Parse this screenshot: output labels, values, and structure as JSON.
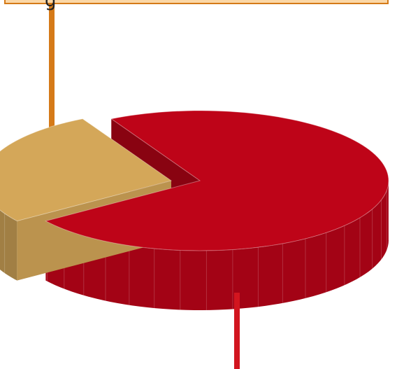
{
  "chart_data": {
    "type": "pie",
    "style": "3d-exploded",
    "slices": [
      {
        "label": "",
        "value": 73,
        "color": "#be0418",
        "exploded": false
      },
      {
        "label": "",
        "value": 27,
        "color": "#d4a759",
        "exploded": true
      }
    ],
    "callout": {
      "text": "g",
      "slice_index": 1,
      "fill": "#fbd7a6",
      "border": "#d57a18"
    },
    "leader_line_colors": [
      "#d2151f",
      "#d57a18"
    ],
    "legend": "none",
    "grid": false
  }
}
